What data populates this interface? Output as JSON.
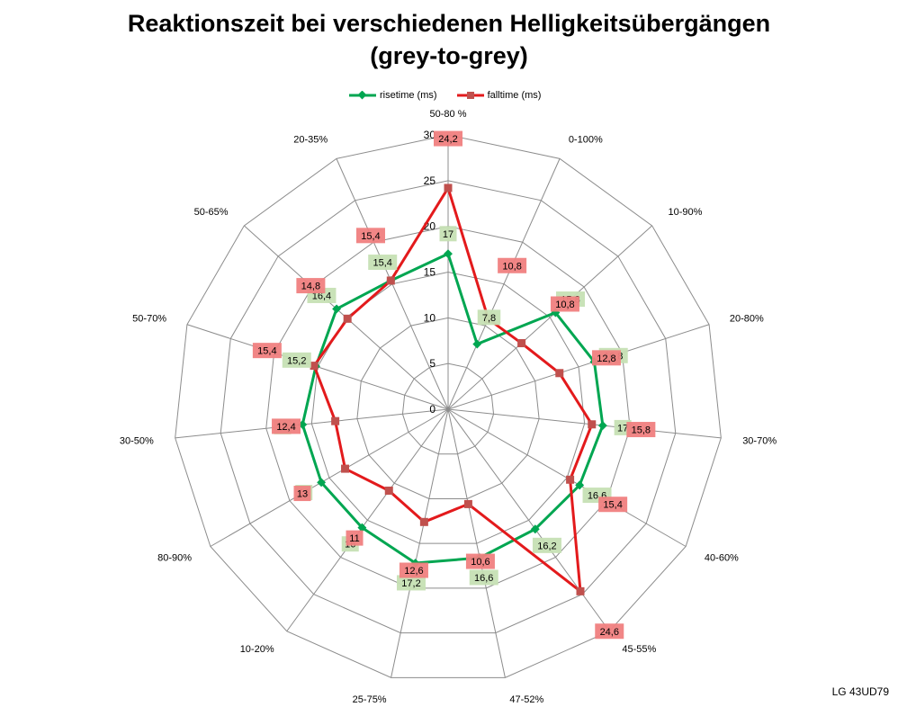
{
  "chart_data": {
    "type": "radar",
    "title_line1": "Reaktionszeit bei verschiedenen Helligkeitsübergängen",
    "title_line2": "(grey-to-grey)",
    "categories": [
      "50-80 %",
      "0-100%",
      "10-90%",
      "20-80%",
      "30-70%",
      "40-60%",
      "45-55%",
      "47-52%",
      "25-75%",
      "10-20%",
      "80-90%",
      "30-50%",
      "50-70%",
      "50-65%",
      "20-35%"
    ],
    "radial_ticks": [
      0,
      5,
      10,
      15,
      20,
      25,
      30
    ],
    "rlim": [
      0,
      30
    ],
    "grid": true,
    "legend_position": "top",
    "series": [
      {
        "name": "risetime (ms)",
        "color": "#00a651",
        "marker": "diamond",
        "label_bg": "#c6e0b4",
        "values": [
          17,
          7.8,
          15.8,
          16.8,
          17,
          16.6,
          16.2,
          16.6,
          17.2,
          16,
          16,
          16,
          15.2,
          16.4,
          15.4
        ]
      },
      {
        "name": "falltime (ms)",
        "color": "#e31a1c",
        "marker": "square",
        "label_bg": "#f08080",
        "values": [
          24.2,
          10.8,
          10.8,
          12.8,
          15.8,
          15.4,
          24.6,
          10.6,
          12.6,
          11,
          13,
          12.4,
          15.4,
          14.8,
          15.4
        ]
      }
    ]
  },
  "footer": "LG 43UD79"
}
